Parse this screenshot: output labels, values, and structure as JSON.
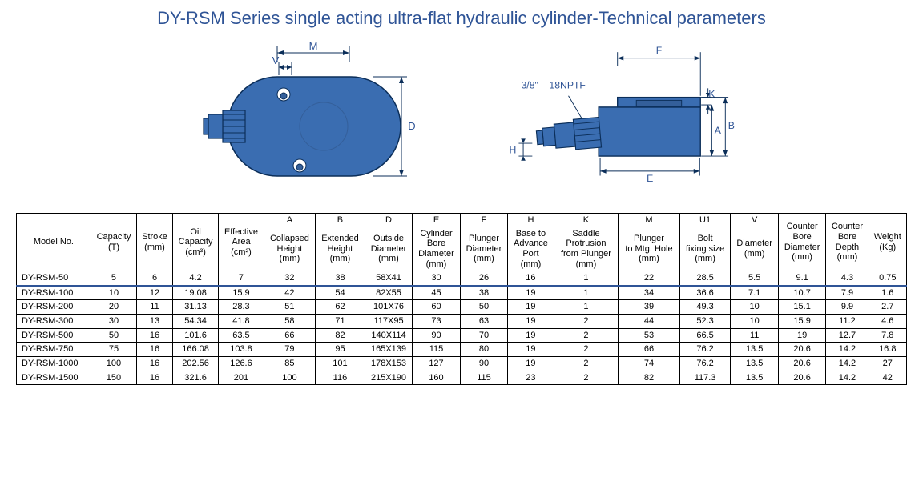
{
  "title": "DY-RSM Series single acting ultra-flat hydraulic cylinder-Technical parameters",
  "diagram": {
    "labels": {
      "M": "M",
      "V": "V",
      "D": "D",
      "F": "F",
      "K": "K",
      "A": "A",
      "B": "B",
      "H": "H",
      "E": "E",
      "thread": "3/8\" –\n18NPTF"
    },
    "colors": {
      "fill": "#3a6db1",
      "stroke": "#0b2e59",
      "shade": "#345f9a",
      "dim": "#0b2e59",
      "text": "#2f5496"
    }
  },
  "table": {
    "top_headers": [
      "",
      "",
      "",
      "",
      "",
      "A",
      "B",
      "D",
      "E",
      "F",
      "H",
      "K",
      "M",
      "U1",
      "V",
      "",
      "",
      ""
    ],
    "headers": [
      "Model No.",
      "Capacity\n(T)",
      "Stroke\n(mm)",
      "Oil\nCapacity\n(cm³)",
      "Effective\nArea\n(cm²)",
      "Collapsed\nHeight\n(mm)",
      "Extended\nHeight\n(mm)",
      "Outside\nDiameter\n(mm)",
      "Cylinder\nBore\nDiameter\n(mm)",
      "Plunger\nDiameter\n(mm)",
      "Base to\nAdvance\nPort\n(mm)",
      "Saddle\nProtrusion\nfrom Plunger\n(mm)",
      "Plunger\nto Mtg. Hole\n(mm)",
      "Bolt\nfixing size\n(mm)",
      "Diameter\n(mm)",
      "Counter\nBore\nDiameter\n(mm)",
      "Counter\nBore\nDepth\n(mm)",
      "Weight\n(Kg)"
    ],
    "highlight_row": 0,
    "rows": [
      [
        "DY-RSM-50",
        "5",
        "6",
        "4.2",
        "7",
        "32",
        "38",
        "58X41",
        "30",
        "26",
        "16",
        "1",
        "22",
        "28.5",
        "5.5",
        "9.1",
        "4.3",
        "0.75"
      ],
      [
        "DY-RSM-100",
        "10",
        "12",
        "19.08",
        "15.9",
        "42",
        "54",
        "82X55",
        "45",
        "38",
        "19",
        "1",
        "34",
        "36.6",
        "7.1",
        "10.7",
        "7.9",
        "1.6"
      ],
      [
        "DY-RSM-200",
        "20",
        "11",
        "31.13",
        "28.3",
        "51",
        "62",
        "101X76",
        "60",
        "50",
        "19",
        "1",
        "39",
        "49.3",
        "10",
        "15.1",
        "9.9",
        "2.7"
      ],
      [
        "DY-RSM-300",
        "30",
        "13",
        "54.34",
        "41.8",
        "58",
        "71",
        "117X95",
        "73",
        "63",
        "19",
        "2",
        "44",
        "52.3",
        "10",
        "15.9",
        "11.2",
        "4.6"
      ],
      [
        "DY-RSM-500",
        "50",
        "16",
        "101.6",
        "63.5",
        "66",
        "82",
        "140X114",
        "90",
        "70",
        "19",
        "2",
        "53",
        "66.5",
        "11",
        "19",
        "12.7",
        "7.8"
      ],
      [
        "DY-RSM-750",
        "75",
        "16",
        "166.08",
        "103.8",
        "79",
        "95",
        "165X139",
        "115",
        "80",
        "19",
        "2",
        "66",
        "76.2",
        "13.5",
        "20.6",
        "14.2",
        "16.8"
      ],
      [
        "DY-RSM-1000",
        "100",
        "16",
        "202.56",
        "126.6",
        "85",
        "101",
        "178X153",
        "127",
        "90",
        "19",
        "2",
        "74",
        "76.2",
        "13.5",
        "20.6",
        "14.2",
        "27"
      ],
      [
        "DY-RSM-1500",
        "150",
        "16",
        "321.6",
        "201",
        "100",
        "116",
        "215X190",
        "160",
        "115",
        "23",
        "2",
        "82",
        "117.3",
        "13.5",
        "20.6",
        "14.2",
        "42"
      ]
    ]
  }
}
